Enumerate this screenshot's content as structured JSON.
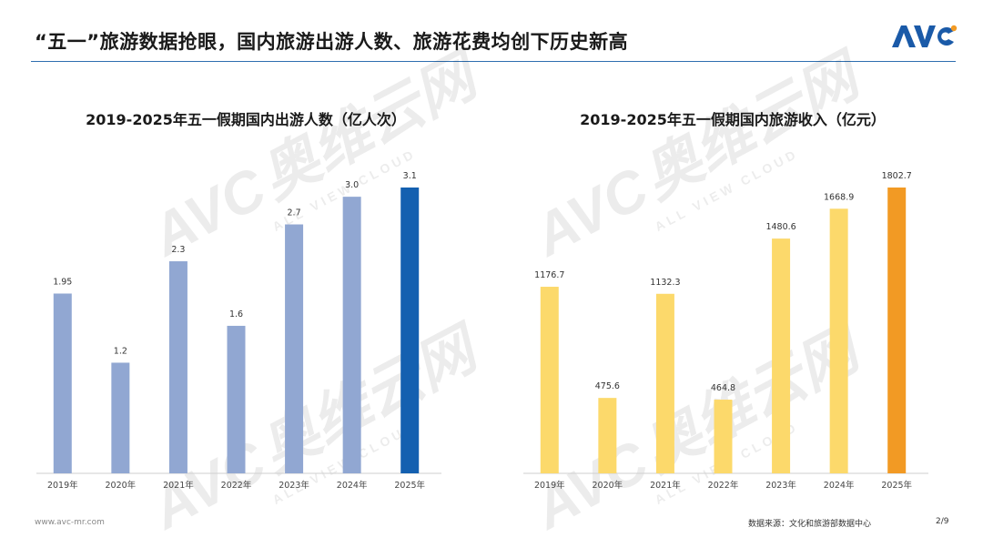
{
  "header": {
    "title": "“五一”旅游数据抢眼，国内旅游出游人数、旅游花费均创下历史新高",
    "logo_text": "AVC"
  },
  "watermark": {
    "brand": "AVC",
    "cn": "奥维云网",
    "en": "ALL VIEW CLOUD"
  },
  "footer": {
    "website": "www.avc-mr.com",
    "source": "数据来源：文化和旅游部数据中心",
    "page": "2/9"
  },
  "colors": {
    "accent_blue": "#2f6fb0",
    "bar_blue": "#91a7d2",
    "bar_blue_highlight": "#1460b0",
    "bar_yellow": "#fcd96b",
    "bar_orange": "#f29a24"
  },
  "chart_data": [
    {
      "type": "bar",
      "title": "2019-2025年五一假期国内出游人数（亿人次）",
      "categories": [
        "2019年",
        "2020年",
        "2021年",
        "2022年",
        "2023年",
        "2024年",
        "2025年"
      ],
      "values": [
        1.95,
        1.2,
        2.3,
        1.6,
        2.7,
        3.0,
        3.1
      ],
      "labels": [
        "1.95",
        "1.2",
        "2.3",
        "1.6",
        "2.7",
        "3.0",
        "3.1"
      ],
      "ylim": [
        0,
        3.1
      ],
      "highlight_index": 6,
      "bar_color": "#91a7d2",
      "highlight_color": "#1460b0"
    },
    {
      "type": "bar",
      "title": "2019-2025年五一假期国内旅游收入（亿元）",
      "categories": [
        "2019年",
        "2020年",
        "2021年",
        "2022年",
        "2023年",
        "2024年",
        "2025年"
      ],
      "values": [
        1176.7,
        475.6,
        1132.3,
        464.8,
        1480.6,
        1668.9,
        1802.7
      ],
      "labels": [
        "1176.7",
        "475.6",
        "1132.3",
        "464.8",
        "1480.6",
        "1668.9",
        "1802.7"
      ],
      "ylim": [
        0,
        1802.7
      ],
      "highlight_index": 6,
      "bar_color": "#fcd96b",
      "highlight_color": "#f29a24"
    }
  ]
}
